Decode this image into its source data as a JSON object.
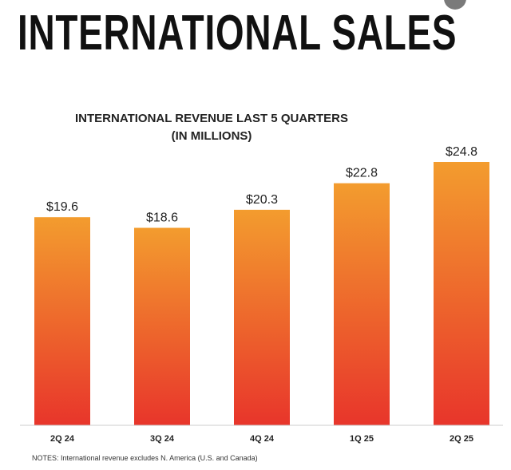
{
  "page": {
    "title": "INTERNATIONAL SALES",
    "notes": "NOTES: International revenue excludes N. America (U.S. and Canada)"
  },
  "colors": {
    "bar_top": "#f39c2e",
    "bar_bottom": "#e8352b",
    "axis": "#cccccc",
    "label": "#222222"
  },
  "chart_data": {
    "type": "bar",
    "title_lines": [
      "INTERNATIONAL REVENUE LAST 5 QUARTERS",
      "(IN MILLIONS)"
    ],
    "categories": [
      "2Q 24",
      "3Q 24",
      "4Q 24",
      "1Q 25",
      "2Q 25"
    ],
    "values": [
      19.6,
      18.6,
      20.3,
      22.8,
      24.8
    ],
    "data_labels": [
      "$19.6",
      "$18.6",
      "$20.3",
      "$22.8",
      "$24.8"
    ],
    "ylim": [
      0,
      24.8
    ],
    "xlabel": "",
    "ylabel": "",
    "grid": false
  }
}
